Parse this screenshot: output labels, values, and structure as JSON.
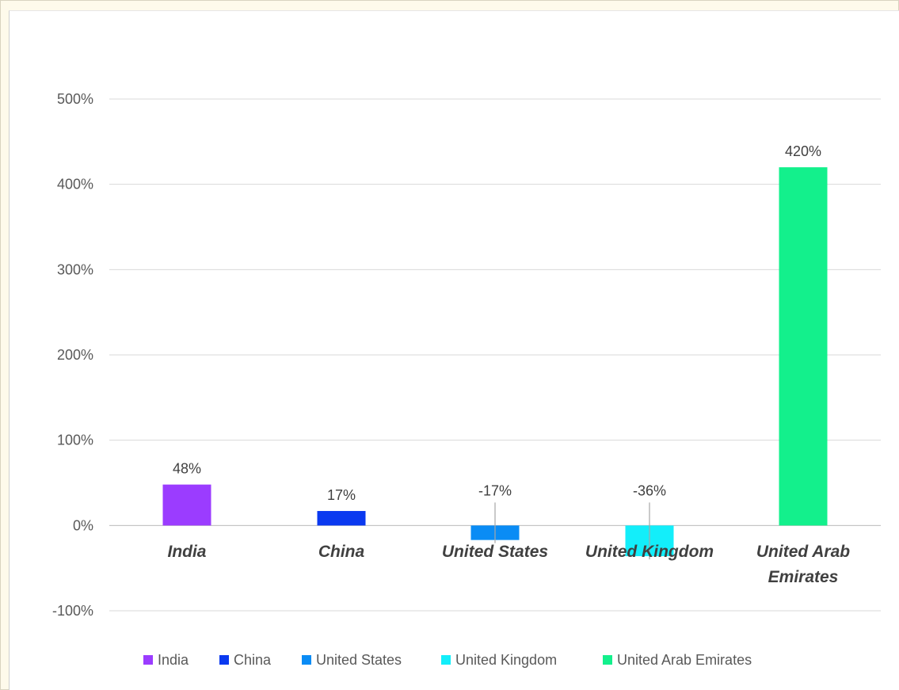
{
  "chart_data": {
    "type": "bar",
    "title": "",
    "xlabel": "",
    "ylabel": "",
    "categories": [
      "India",
      "China",
      "United States",
      "United Kingdom",
      "United Arab Emirates"
    ],
    "category_lines": [
      [
        "India"
      ],
      [
        "China"
      ],
      [
        "United States"
      ],
      [
        "United Kingdom"
      ],
      [
        "United Arab",
        "Emirates"
      ]
    ],
    "values": [
      48,
      17,
      -17,
      -36,
      420
    ],
    "value_labels": [
      "48%",
      "17%",
      "-17%",
      "-36%",
      "420%"
    ],
    "colors": [
      "#9b3cff",
      "#0a39f0",
      "#0a8cf5",
      "#13eefa",
      "#13f08c"
    ],
    "ylim": [
      -100,
      500
    ],
    "yticks": [
      -100,
      0,
      100,
      200,
      300,
      400,
      500
    ],
    "ytick_labels": [
      "-100%",
      "0%",
      "100%",
      "200%",
      "300%",
      "400%",
      "500%"
    ],
    "grid": true,
    "legend": {
      "position": "bottom",
      "entries": [
        "India",
        "China",
        "United States",
        "United Kingdom",
        "United Arab Emirates"
      ]
    }
  }
}
